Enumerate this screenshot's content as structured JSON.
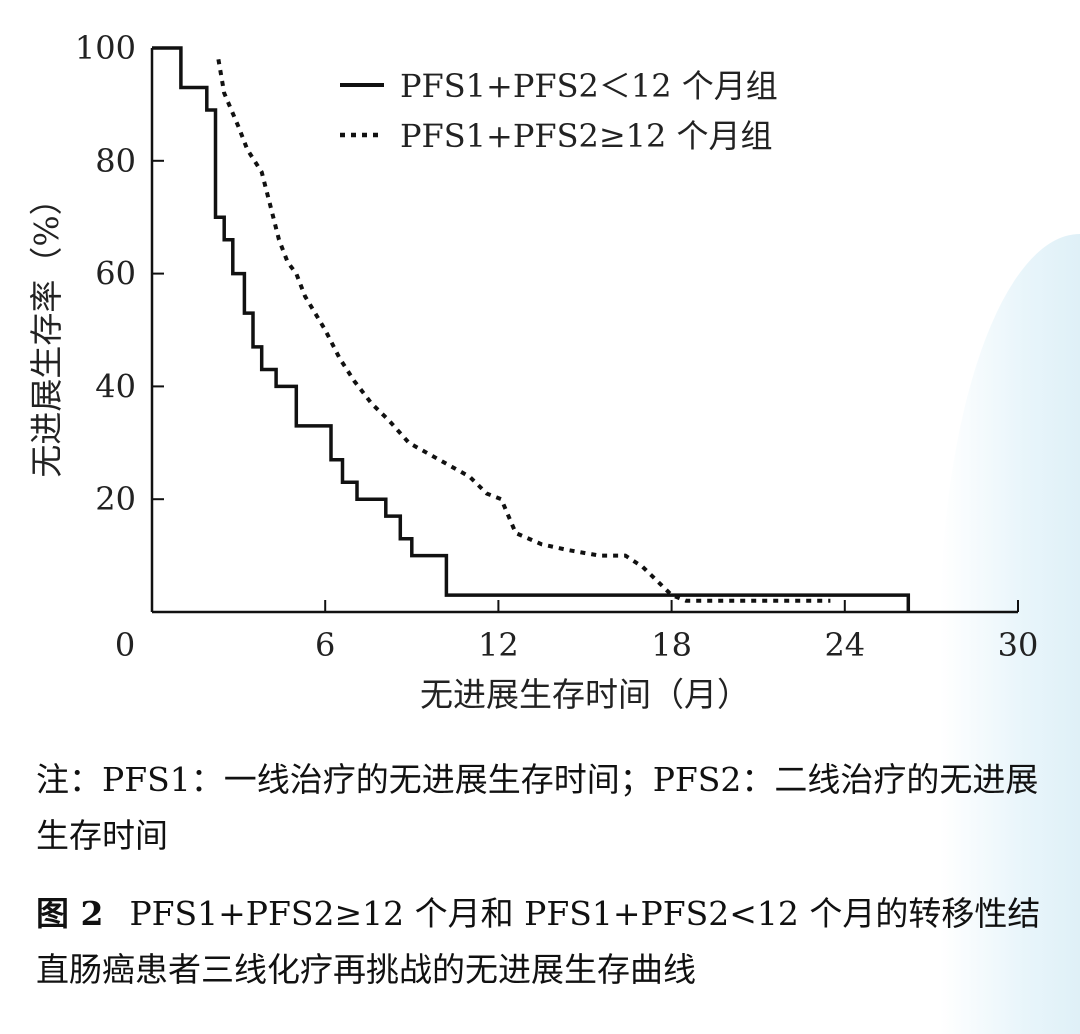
{
  "chart_data": {
    "type": "line",
    "title": "",
    "xlabel": "无进展生存时间（月）",
    "ylabel": "无进展生存率（%）",
    "xlim": [
      0,
      30
    ],
    "ylim": [
      0,
      100
    ],
    "x_ticks": [
      0,
      6,
      12,
      18,
      24,
      30
    ],
    "y_ticks": [
      20,
      40,
      60,
      80,
      100
    ],
    "x_tick_labels": [
      "0",
      "6",
      "12",
      "18",
      "24",
      "30"
    ],
    "y_tick_labels": [
      "20",
      "40",
      "60",
      "80",
      "100"
    ],
    "grid": false,
    "legend_position": "top-right",
    "series": [
      {
        "name": "PFS1+PFS2＜12 个月组",
        "style": "solid",
        "color": "#111111",
        "x": [
          0,
          1.0,
          1.0,
          1.9,
          1.9,
          2.2,
          2.2,
          2.5,
          2.5,
          2.8,
          2.8,
          3.2,
          3.2,
          3.5,
          3.5,
          3.8,
          3.8,
          4.3,
          4.3,
          4.8,
          4.8,
          5.0,
          5.0,
          5.1,
          5.1,
          6.2,
          6.2,
          6.6,
          6.6,
          7.1,
          7.1,
          7.5,
          7.5,
          8.1,
          8.1,
          8.6,
          8.6,
          9.0,
          9.0,
          10.2,
          10.2,
          26.2,
          26.2
        ],
        "y": [
          100,
          100,
          93,
          93,
          89,
          89,
          70,
          70,
          66,
          66,
          60,
          60,
          53,
          53,
          47,
          47,
          43,
          43,
          40,
          40,
          40,
          40,
          33,
          33,
          33,
          33,
          27,
          27,
          23,
          23,
          20,
          20,
          20,
          20,
          17,
          17,
          13,
          13,
          10,
          10,
          3,
          3,
          0
        ]
      },
      {
        "name": "PFS1+PFS2≥12 个月组",
        "style": "dotted",
        "color": "#111111",
        "x": [
          2.3,
          2.5,
          3.0,
          3.3,
          3.8,
          4.1,
          4.4,
          4.7,
          5.0,
          5.3,
          6.0,
          6.5,
          7.0,
          7.6,
          8.2,
          8.9,
          9.6,
          10.3,
          11.0,
          11.6,
          12.1,
          12.6,
          13.5,
          14.4,
          15.5,
          16.4,
          17.0,
          17.6,
          18.0,
          18.5,
          20.0,
          22.0,
          23.0,
          23.5
        ],
        "y": [
          98,
          92,
          86,
          82,
          78,
          72,
          66,
          62,
          60,
          56,
          50,
          45,
          41,
          37,
          34,
          30,
          28,
          26,
          24,
          21,
          20,
          14,
          12,
          11,
          10,
          10,
          8,
          5,
          3,
          2,
          2,
          2,
          2,
          2
        ]
      }
    ]
  },
  "note": "注：PFS1：一线治疗的无进展生存时间；PFS2：二线治疗的无进展生存时间",
  "caption": {
    "label": "图 2",
    "text": "PFS1+PFS2≥12 个月和 PFS1+PFS2<12 个月的转移性结直肠癌患者三线化疗再挑战的无进展生存曲线"
  }
}
